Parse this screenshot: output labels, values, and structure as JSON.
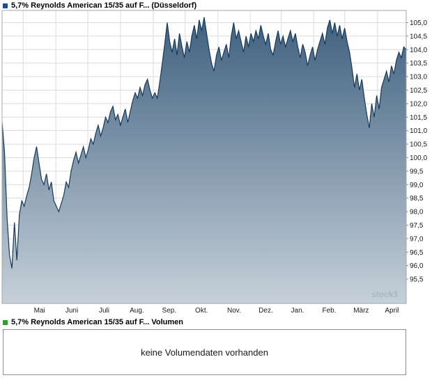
{
  "header": {
    "title": "5,7% Reynolds American 15/35 auf F... (Düsseldorf)",
    "legend_color": "#1f4e8c"
  },
  "volume": {
    "title": "5,7% Reynolds American 15/35 auf F... Volumen",
    "legend_color": "#2ca12c",
    "empty_message": "keine Volumendaten vorhanden"
  },
  "watermark": "stock3",
  "chart_data": {
    "type": "area",
    "title": "5,7% Reynolds American 15/35 auf F... (Düsseldorf)",
    "xlabel": "",
    "ylabel": "",
    "grid": true,
    "legend_position": "top-left",
    "y_axis_side": "right",
    "ylim": [
      94.6,
      105.45
    ],
    "y_ticks": [
      105.0,
      104.5,
      104.0,
      103.5,
      103.0,
      102.5,
      102.0,
      101.5,
      101.0,
      100.5,
      100.0,
      99.5,
      99.0,
      98.5,
      98.0,
      97.5,
      97.0,
      96.5,
      96.0,
      95.5
    ],
    "x_tick_labels": [
      "Mai",
      "Juni",
      "Juli",
      "Aug.",
      "Sep.",
      "Okt.",
      "Nov.",
      "Dez.",
      "Jan.",
      "Feb.",
      "März",
      "April"
    ],
    "x_tick_positions": [
      0.052,
      0.133,
      0.212,
      0.293,
      0.374,
      0.453,
      0.534,
      0.614,
      0.691,
      0.771,
      0.848,
      0.929
    ],
    "line_color": "#16395c",
    "fill_top": "#3f617f",
    "fill_bottom": "#c6d0d9",
    "values": [
      101.3,
      100.2,
      97.8,
      96.4,
      95.9,
      97.6,
      96.2,
      97.9,
      98.4,
      98.2,
      98.6,
      98.9,
      99.4,
      100.0,
      100.4,
      99.8,
      99.2,
      99.0,
      99.4,
      98.8,
      99.1,
      98.4,
      98.2,
      98.0,
      98.3,
      98.6,
      99.1,
      98.9,
      99.5,
      99.9,
      100.2,
      99.8,
      100.1,
      100.4,
      100.0,
      100.3,
      100.7,
      100.5,
      100.9,
      101.2,
      100.8,
      101.1,
      101.5,
      101.3,
      101.7,
      101.9,
      101.4,
      101.6,
      101.2,
      101.5,
      101.8,
      101.3,
      101.7,
      102.1,
      102.4,
      102.2,
      102.6,
      102.3,
      102.7,
      102.9,
      102.5,
      102.2,
      102.4,
      102.2,
      102.8,
      103.5,
      104.2,
      105.0,
      104.3,
      103.9,
      104.4,
      103.8,
      104.6,
      104.1,
      103.7,
      104.3,
      103.9,
      104.5,
      104.9,
      104.4,
      105.1,
      104.7,
      105.2,
      104.6,
      104.0,
      103.5,
      103.2,
      103.8,
      104.1,
      103.6,
      103.9,
      104.2,
      103.7,
      104.5,
      105.0,
      104.4,
      104.7,
      104.3,
      103.9,
      104.5,
      104.1,
      104.6,
      104.3,
      104.7,
      104.4,
      104.9,
      104.5,
      104.2,
      104.6,
      104.0,
      103.8,
      104.3,
      104.7,
      104.2,
      104.5,
      104.1,
      104.4,
      104.7,
      104.3,
      104.6,
      104.1,
      103.7,
      104.2,
      103.9,
      103.4,
      103.8,
      104.1,
      103.6,
      104.0,
      104.3,
      104.6,
      104.2,
      104.8,
      105.1,
      104.6,
      105.0,
      104.5,
      104.9,
      104.4,
      104.8,
      104.3,
      103.9,
      103.3,
      102.6,
      103.1,
      102.5,
      102.9,
      102.2,
      101.6,
      101.1,
      102.0,
      101.5,
      102.3,
      101.8,
      102.6,
      102.9,
      103.2,
      102.8,
      103.4,
      103.1,
      103.6,
      103.9,
      103.7,
      104.1,
      104.0
    ]
  }
}
